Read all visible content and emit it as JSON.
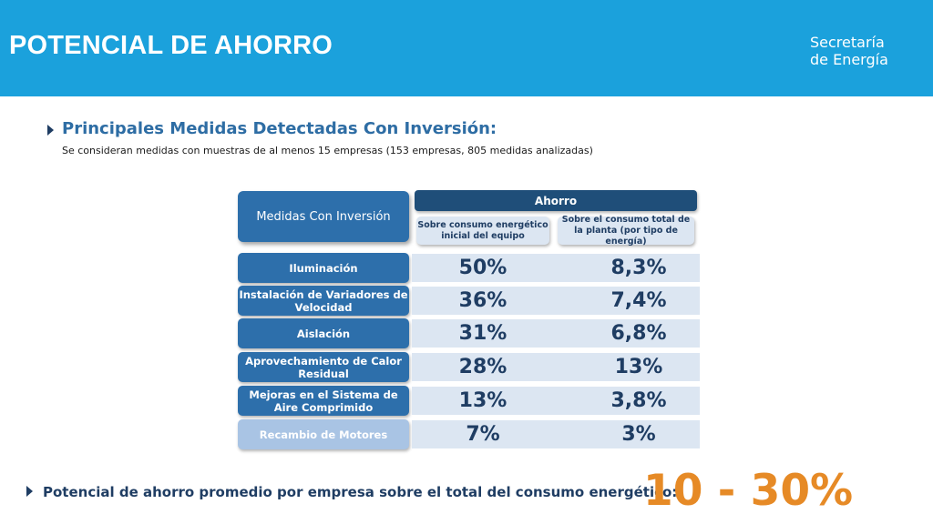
{
  "header": {
    "title": "POTENCIAL DE AHORRO",
    "brand_line1": "Secretaría",
    "brand_line2": "de Energía"
  },
  "section": {
    "heading": "Principales Medidas Detectadas Con Inversión:",
    "note": "Se consideran medidas con muestras de al menos 15 empresas (153 empresas, 805 medidas analizadas)"
  },
  "table": {
    "measures_header": "Medidas Con Inversión",
    "savings_header": "Ahorro",
    "col1_header": "Sobre consumo energético inicial del equipo",
    "col2_header": "Sobre el consumo total de la planta (por tipo de energía)",
    "rows": [
      {
        "label": "Iluminación",
        "equipment": "50%",
        "plant": "8,3%"
      },
      {
        "label": "Instalación de Variadores de Velocidad",
        "equipment": "36%",
        "plant": "7,4%"
      },
      {
        "label": "Aislación",
        "equipment": "31%",
        "plant": "6,8%"
      },
      {
        "label": "Aprovechamiento de Calor Residual",
        "equipment": "28%",
        "plant": "13%"
      },
      {
        "label": "Mejoras en el Sistema de Aire Comprimido",
        "equipment": "13%",
        "plant": "3,8%"
      },
      {
        "label": "Recambio de Motores",
        "equipment": "7%",
        "plant": "3%"
      }
    ]
  },
  "summary": {
    "text": "Potencial de ahorro promedio por empresa sobre el total del consumo energético:",
    "range": "10 - 30%"
  },
  "colors": {
    "header_blue": "#1ba1dc",
    "dark_blue": "#1f4e79",
    "label_blue": "#2d6fab",
    "light_label_blue": "#a9c4e4",
    "band_blue": "#dce6f2",
    "accent_orange": "#e68a26"
  }
}
